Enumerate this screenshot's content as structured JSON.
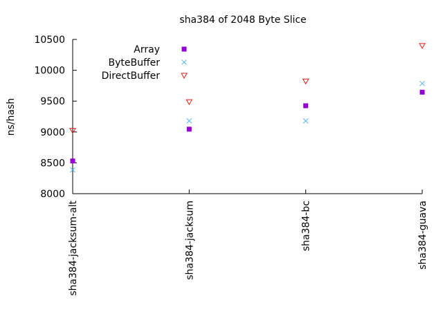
{
  "chart_data": {
    "type": "scatter",
    "title": "sha384 of 2048 Byte Slice",
    "ylabel": "ns/hash",
    "xlabel": "",
    "categories": [
      "sha384-jacksum-alt",
      "sha384-jacksum",
      "sha384-bc",
      "sha384-guava"
    ],
    "ylim": [
      8000,
      10500
    ],
    "yticks": [
      8000,
      8500,
      9000,
      9500,
      10000,
      10500
    ],
    "grid": false,
    "legend_position": "top-left",
    "series": [
      {
        "name": "Array",
        "marker": "filled-square",
        "color": "#9400d3",
        "values": [
          8530,
          9045,
          9425,
          9645
        ]
      },
      {
        "name": "ByteBuffer",
        "marker": "cross",
        "color": "#56b4e9",
        "values": [
          8385,
          9180,
          9180,
          9785
        ]
      },
      {
        "name": "DirectBuffer",
        "marker": "open-triangle-down",
        "color": "#e51e10",
        "values": [
          9025,
          9490,
          9825,
          10400
        ]
      }
    ]
  }
}
